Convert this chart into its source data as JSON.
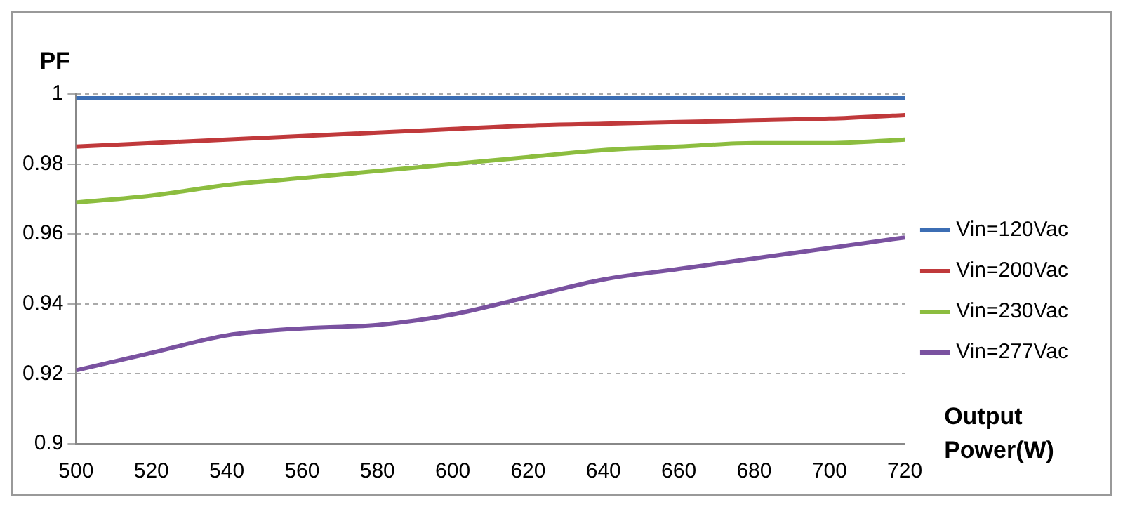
{
  "chart_data": {
    "type": "line",
    "ylabel": "PF",
    "xlabel": "Output Power(W)",
    "x": [
      500,
      520,
      540,
      560,
      580,
      600,
      620,
      640,
      660,
      680,
      700,
      720
    ],
    "series": [
      {
        "name": "Vin=120Vac",
        "color": "#3c6eb4",
        "values": [
          0.999,
          0.999,
          0.999,
          0.999,
          0.999,
          0.999,
          0.999,
          0.999,
          0.999,
          0.999,
          0.999,
          0.999
        ]
      },
      {
        "name": "Vin=200Vac",
        "color": "#c0393b",
        "values": [
          0.985,
          0.986,
          0.987,
          0.988,
          0.989,
          0.99,
          0.991,
          0.9915,
          0.992,
          0.9925,
          0.993,
          0.994
        ]
      },
      {
        "name": "Vin=230Vac",
        "color": "#8cbd3f",
        "values": [
          0.969,
          0.971,
          0.974,
          0.976,
          0.978,
          0.98,
          0.982,
          0.984,
          0.985,
          0.986,
          0.986,
          0.987
        ]
      },
      {
        "name": "Vin=277Vac",
        "color": "#7a52a0",
        "values": [
          0.921,
          0.926,
          0.931,
          0.933,
          0.934,
          0.937,
          0.942,
          0.947,
          0.95,
          0.953,
          0.956,
          0.959
        ]
      }
    ],
    "xlim": [
      500,
      720
    ],
    "xticks": [
      500,
      520,
      540,
      560,
      580,
      600,
      620,
      640,
      660,
      680,
      700,
      720
    ],
    "ylim": [
      0.9,
      1
    ],
    "yticks": [
      0.9,
      0.92,
      0.94,
      0.96,
      0.98,
      1
    ],
    "grid": "y",
    "legend": "right",
    "marker": "none",
    "line_style": "solid"
  }
}
